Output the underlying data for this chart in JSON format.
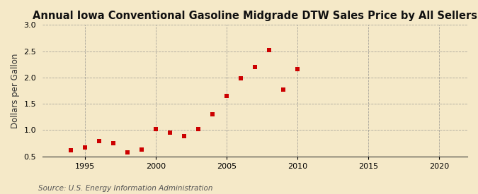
{
  "title": "Annual Iowa Conventional Gasoline Midgrade DTW Sales Price by All Sellers",
  "ylabel": "Dollars per Gallon",
  "source": "Source: U.S. Energy Information Administration",
  "years": [
    1994,
    1995,
    1996,
    1997,
    1998,
    1999,
    2000,
    2001,
    2002,
    2003,
    2004,
    2005,
    2006,
    2007,
    2008,
    2009,
    2010
  ],
  "values": [
    0.62,
    0.67,
    0.79,
    0.75,
    0.58,
    0.63,
    1.02,
    0.95,
    0.89,
    1.02,
    1.3,
    1.65,
    1.99,
    2.2,
    2.52,
    1.77,
    2.16
  ],
  "marker_color": "#cc0000",
  "marker_size": 4,
  "xlim": [
    1992,
    2022
  ],
  "ylim": [
    0.5,
    3.0
  ],
  "xticks": [
    1995,
    2000,
    2005,
    2010,
    2015,
    2020
  ],
  "yticks": [
    0.5,
    1.0,
    1.5,
    2.0,
    2.5,
    3.0
  ],
  "background_color": "#f5e9c8",
  "grid_color": "#888888",
  "title_fontsize": 10.5,
  "label_fontsize": 8.5,
  "tick_fontsize": 8,
  "source_fontsize": 7.5
}
